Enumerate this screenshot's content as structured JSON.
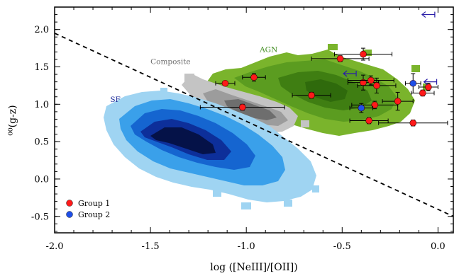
{
  "chart_data": {
    "type": "scatter",
    "xlabel": "log ([NeIII]/[OII])",
    "ylabel": "⁰⁰(g-z)",
    "xlim": [
      -2.0,
      0.08
    ],
    "ylim": [
      -0.72,
      2.3
    ],
    "xticks": [
      -2.0,
      -1.5,
      -1.0,
      -0.5,
      0.0
    ],
    "xtick_labels": [
      "-2.0",
      "-1.5",
      "-1.0",
      "-0.5",
      "0.0"
    ],
    "yticks": [
      -0.5,
      0.0,
      0.5,
      1.0,
      1.5,
      2.0
    ],
    "ytick_labels": [
      "-0.5",
      "0.0",
      "0.5",
      "1.0",
      "1.5",
      "2.0"
    ],
    "grid": false,
    "legend_position": "bottom-left",
    "divider_line": {
      "style": "dashed",
      "x": [
        -2.0,
        0.08
      ],
      "y": [
        1.95,
        -0.5
      ]
    },
    "region_labels": [
      {
        "text": "SF",
        "x": -1.71,
        "y": 1.03,
        "color": "#1a2a9a"
      },
      {
        "text": "Composite",
        "x": -1.5,
        "y": 1.54,
        "color": "#707070"
      },
      {
        "text": "AGN",
        "x": -0.93,
        "y": 1.7,
        "color": "#3f8c1e"
      }
    ],
    "series": [
      {
        "name": "Group 1",
        "color": "#ff1a1a",
        "points": [
          {
            "x": -1.11,
            "y": 1.28,
            "xerr": 0.05,
            "yerr": 0.03
          },
          {
            "x": -0.96,
            "y": 1.36,
            "xerr": 0.06,
            "yerr": 0.05
          },
          {
            "x": -1.02,
            "y": 0.96,
            "xerr": 0.22,
            "yerr": 0.04
          },
          {
            "x": -0.51,
            "y": 1.61,
            "xerr": 0.15,
            "yerr": 0.04
          },
          {
            "x": -0.39,
            "y": 1.67,
            "xerr": 0.15,
            "yerr": 0.08
          },
          {
            "x": -0.39,
            "y": 1.29,
            "xerr": 0.08,
            "yerr": 0.1
          },
          {
            "x": -0.35,
            "y": 1.32,
            "xerr": 0.12,
            "yerr": 0.06
          },
          {
            "x": -0.32,
            "y": 1.25,
            "xerr": 0.1,
            "yerr": 0.1
          },
          {
            "x": -0.66,
            "y": 1.12,
            "xerr": 0.1,
            "yerr": 0.04
          },
          {
            "x": -0.33,
            "y": 0.99,
            "xerr": 0.12,
            "yerr": 0.05
          },
          {
            "x": -0.36,
            "y": 0.78,
            "xerr": 0.1,
            "yerr": 0.04
          },
          {
            "x": -0.21,
            "y": 1.04,
            "xerr": 0.08,
            "yerr": 0.12
          },
          {
            "x": -0.08,
            "y": 1.15,
            "xerr": 0.06,
            "yerr": 0.04
          },
          {
            "x": -0.05,
            "y": 1.23,
            "xerr": 0.05,
            "yerr": 0.05
          },
          {
            "x": -0.13,
            "y": 0.75,
            "xerr": 0.18,
            "yerr": 0.04
          }
        ]
      },
      {
        "name": "Group 2",
        "color": "#1f4fe8",
        "points": [
          {
            "x": -0.4,
            "y": 0.95,
            "xerr": 0.06,
            "yerr": 0.06
          },
          {
            "x": -0.13,
            "y": 1.28,
            "xerr": 0.04,
            "yerr": 0.13
          }
        ]
      }
    ],
    "upper_limits": [
      {
        "x": -0.05,
        "y": 2.2
      },
      {
        "x": -0.46,
        "y": 1.41
      },
      {
        "x": -0.04,
        "y": 1.3
      }
    ]
  }
}
